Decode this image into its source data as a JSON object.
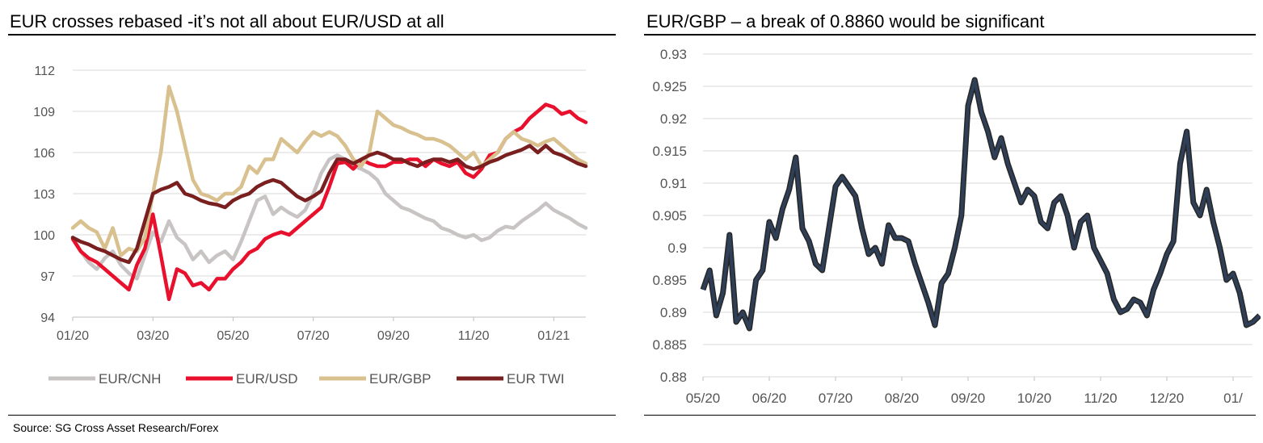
{
  "source": "Source: SG Cross Asset Research/Forex",
  "chart_data": [
    {
      "type": "line",
      "title": "EUR crosses rebased  -it’s not all about EUR/USD at all",
      "x_ticks": [
        "01/20",
        "03/20",
        "05/20",
        "07/20",
        "09/20",
        "11/20",
        "01/21"
      ],
      "y_ticks": [
        "112",
        "109",
        "106",
        "103",
        "100",
        "97",
        "94"
      ],
      "ylim": [
        94,
        112
      ],
      "grid": true,
      "legend_position": "bottom",
      "legend": [
        "EUR/CNH",
        "EUR/USD",
        "EUR/GBP",
        "EUR TWI"
      ],
      "series": [
        {
          "name": "EUR/CNH",
          "color": "#c8c4c4",
          "x": [
            0,
            0.2,
            0.4,
            0.6,
            0.8,
            1.0,
            1.2,
            1.4,
            1.6,
            1.8,
            2.0,
            2.2,
            2.4,
            2.6,
            2.8,
            3.0,
            3.2,
            3.4,
            3.6,
            3.8,
            4.0,
            4.2,
            4.4,
            4.6,
            4.8,
            5.0,
            5.2,
            5.4,
            5.6,
            5.8,
            6.0,
            6.2,
            6.4,
            6.6,
            6.8,
            7.0,
            7.2,
            7.4,
            7.6,
            7.8,
            8.0,
            8.2,
            8.4,
            8.6,
            8.8,
            9.0,
            9.2,
            9.4,
            9.6,
            9.8,
            10.0,
            10.2,
            10.4,
            10.6,
            10.8,
            11.0,
            11.2,
            11.4,
            11.6,
            11.8,
            12.0,
            12.2,
            12.4,
            12.6,
            12.8
          ],
          "y": [
            99.8,
            98.8,
            98.0,
            97.5,
            98.3,
            98.8,
            97.8,
            97.2,
            96.8,
            98.5,
            100.2,
            99.5,
            101.0,
            99.8,
            99.3,
            98.2,
            98.8,
            98.0,
            98.5,
            98.8,
            98.2,
            99.5,
            101.0,
            102.5,
            102.8,
            101.5,
            102.0,
            101.6,
            101.3,
            101.8,
            103.0,
            104.5,
            105.5,
            105.8,
            105.5,
            105.0,
            104.8,
            104.5,
            104.0,
            103.0,
            102.5,
            102.0,
            101.8,
            101.5,
            101.2,
            101.0,
            100.5,
            100.3,
            100.0,
            99.8,
            100.0,
            99.6,
            99.8,
            100.3,
            100.6,
            100.5,
            101.0,
            101.4,
            101.8,
            102.3,
            101.8,
            101.5,
            101.2,
            100.8,
            100.5
          ]
        },
        {
          "name": "EUR/USD",
          "color": "#e8102c",
          "x": [
            0,
            0.2,
            0.4,
            0.6,
            0.8,
            1.0,
            1.2,
            1.4,
            1.6,
            1.8,
            2.0,
            2.2,
            2.4,
            2.6,
            2.8,
            3.0,
            3.2,
            3.4,
            3.6,
            3.8,
            4.0,
            4.2,
            4.4,
            4.6,
            4.8,
            5.0,
            5.2,
            5.4,
            5.6,
            5.8,
            6.0,
            6.2,
            6.4,
            6.6,
            6.8,
            7.0,
            7.2,
            7.4,
            7.6,
            7.8,
            8.0,
            8.2,
            8.4,
            8.6,
            8.8,
            9.0,
            9.2,
            9.4,
            9.6,
            9.8,
            10.0,
            10.2,
            10.4,
            10.6,
            10.8,
            11.0,
            11.2,
            11.4,
            11.6,
            11.8,
            12.0,
            12.2,
            12.4,
            12.6,
            12.8
          ],
          "y": [
            99.7,
            98.8,
            98.3,
            98.0,
            97.5,
            97.0,
            96.5,
            96.0,
            97.8,
            99.0,
            101.5,
            98.5,
            95.3,
            97.5,
            97.2,
            96.3,
            96.5,
            96.0,
            96.8,
            96.8,
            97.5,
            98.0,
            98.7,
            99.0,
            99.7,
            100.0,
            100.2,
            100.0,
            100.5,
            101.0,
            101.5,
            102.0,
            103.5,
            105.2,
            105.3,
            104.8,
            105.5,
            105.2,
            105.0,
            105.0,
            105.3,
            105.3,
            105.5,
            105.5,
            105.0,
            105.5,
            105.2,
            105.0,
            105.3,
            104.5,
            104.2,
            104.8,
            105.8,
            106.0,
            107.0,
            107.5,
            107.8,
            108.5,
            109.0,
            109.5,
            109.3,
            108.8,
            109.0,
            108.5,
            108.2
          ]
        },
        {
          "name": "EUR/GBP",
          "color": "#d8c08f",
          "x": [
            0,
            0.2,
            0.4,
            0.6,
            0.8,
            1.0,
            1.2,
            1.4,
            1.6,
            1.8,
            2.0,
            2.2,
            2.4,
            2.6,
            2.8,
            3.0,
            3.2,
            3.4,
            3.6,
            3.8,
            4.0,
            4.2,
            4.4,
            4.6,
            4.8,
            5.0,
            5.2,
            5.4,
            5.6,
            5.8,
            6.0,
            6.2,
            6.4,
            6.6,
            6.8,
            7.0,
            7.2,
            7.4,
            7.6,
            7.8,
            8.0,
            8.2,
            8.4,
            8.6,
            8.8,
            9.0,
            9.2,
            9.4,
            9.6,
            9.8,
            10.0,
            10.2,
            10.4,
            10.6,
            10.8,
            11.0,
            11.2,
            11.4,
            11.6,
            11.8,
            12.0,
            12.2,
            12.4,
            12.6,
            12.8
          ],
          "y": [
            100.5,
            101.0,
            100.5,
            100.2,
            99.0,
            100.5,
            98.5,
            99.0,
            98.8,
            99.8,
            103.0,
            106.0,
            110.8,
            109.0,
            106.5,
            104.0,
            103.0,
            102.8,
            102.5,
            103.0,
            103.0,
            103.5,
            105.0,
            104.5,
            105.5,
            105.5,
            107.0,
            106.5,
            106.0,
            106.8,
            107.5,
            107.2,
            107.5,
            107.2,
            106.5,
            105.5,
            105.0,
            106.0,
            109.0,
            108.5,
            108.0,
            107.8,
            107.5,
            107.3,
            107.0,
            107.0,
            106.8,
            106.5,
            106.0,
            105.5,
            106.0,
            105.0,
            105.5,
            106.0,
            107.0,
            107.5,
            107.0,
            106.8,
            106.5,
            106.8,
            107.0,
            106.5,
            106.0,
            105.5,
            105.2
          ]
        },
        {
          "name": "EUR TWI",
          "color": "#7a1f1f",
          "x": [
            0,
            0.2,
            0.4,
            0.6,
            0.8,
            1.0,
            1.2,
            1.4,
            1.6,
            1.8,
            2.0,
            2.2,
            2.4,
            2.6,
            2.8,
            3.0,
            3.2,
            3.4,
            3.6,
            3.8,
            4.0,
            4.2,
            4.4,
            4.6,
            4.8,
            5.0,
            5.2,
            5.4,
            5.6,
            5.8,
            6.0,
            6.2,
            6.4,
            6.6,
            6.8,
            7.0,
            7.2,
            7.4,
            7.6,
            7.8,
            8.0,
            8.2,
            8.4,
            8.6,
            8.8,
            9.0,
            9.2,
            9.4,
            9.6,
            9.8,
            10.0,
            10.2,
            10.4,
            10.6,
            10.8,
            11.0,
            11.2,
            11.4,
            11.6,
            11.8,
            12.0,
            12.2,
            12.4,
            12.6,
            12.8
          ],
          "y": [
            99.8,
            99.5,
            99.3,
            99.0,
            98.8,
            98.5,
            98.2,
            98.0,
            99.0,
            101.0,
            103.0,
            103.3,
            103.5,
            103.8,
            103.0,
            102.8,
            102.5,
            102.3,
            102.2,
            102.0,
            102.5,
            102.8,
            103.0,
            103.5,
            103.8,
            104.0,
            103.8,
            103.3,
            102.8,
            102.5,
            102.8,
            103.2,
            104.5,
            105.5,
            105.5,
            105.2,
            105.5,
            105.8,
            106.0,
            105.8,
            105.5,
            105.5,
            105.2,
            105.0,
            105.3,
            105.5,
            105.5,
            105.3,
            105.5,
            105.0,
            104.8,
            105.0,
            105.3,
            105.5,
            105.8,
            106.0,
            106.2,
            106.5,
            106.0,
            106.5,
            106.0,
            105.8,
            105.5,
            105.2,
            105.0
          ]
        }
      ]
    },
    {
      "type": "line",
      "title": "EUR/GBP – a break of 0.8860 would be significant",
      "x_ticks": [
        "05/20",
        "06/20",
        "07/20",
        "08/20",
        "09/20",
        "10/20",
        "11/20",
        "12/20",
        "01/"
      ],
      "y_ticks": [
        "0.93",
        "0.925",
        "0.92",
        "0.915",
        "0.91",
        "0.905",
        "0.9",
        "0.895",
        "0.89",
        "0.885",
        "0.88"
      ],
      "ylim": [
        0.88,
        0.93
      ],
      "grid": true,
      "series": [
        {
          "color": "#2f3f57",
          "x": [
            0,
            0.1,
            0.2,
            0.3,
            0.4,
            0.5,
            0.6,
            0.7,
            0.8,
            0.9,
            1.0,
            1.1,
            1.2,
            1.3,
            1.4,
            1.5,
            1.6,
            1.7,
            1.8,
            1.9,
            2.0,
            2.1,
            2.2,
            2.3,
            2.4,
            2.5,
            2.6,
            2.7,
            2.8,
            2.9,
            3.0,
            3.1,
            3.2,
            3.3,
            3.4,
            3.5,
            3.6,
            3.7,
            3.8,
            3.9,
            4.0,
            4.1,
            4.2,
            4.3,
            4.4,
            4.5,
            4.6,
            4.7,
            4.8,
            4.9,
            5.0,
            5.1,
            5.2,
            5.3,
            5.4,
            5.5,
            5.6,
            5.7,
            5.8,
            5.9,
            6.0,
            6.1,
            6.2,
            6.3,
            6.4,
            6.5,
            6.6,
            6.7,
            6.8,
            6.9,
            7.0,
            7.1,
            7.2,
            7.3,
            7.4,
            7.5,
            7.6,
            7.7,
            7.8,
            7.9,
            8.0,
            8.1,
            8.2,
            8.3,
            8.4
          ],
          "y": [
            0.8935,
            0.8965,
            0.8895,
            0.893,
            0.902,
            0.8885,
            0.89,
            0.8875,
            0.895,
            0.8965,
            0.904,
            0.9015,
            0.906,
            0.909,
            0.914,
            0.903,
            0.901,
            0.8975,
            0.8965,
            0.903,
            0.9095,
            0.911,
            0.9095,
            0.908,
            0.903,
            0.899,
            0.9,
            0.8975,
            0.9035,
            0.9015,
            0.9015,
            0.901,
            0.8975,
            0.8945,
            0.8915,
            0.888,
            0.8945,
            0.896,
            0.9,
            0.905,
            0.922,
            0.926,
            0.921,
            0.918,
            0.914,
            0.917,
            0.913,
            0.91,
            0.907,
            0.909,
            0.908,
            0.904,
            0.903,
            0.907,
            0.908,
            0.905,
            0.9,
            0.904,
            0.905,
            0.9,
            0.898,
            0.896,
            0.892,
            0.89,
            0.8905,
            0.892,
            0.8915,
            0.8895,
            0.8935,
            0.896,
            0.899,
            0.901,
            0.913,
            0.918,
            0.907,
            0.905,
            0.909,
            0.904,
            0.9,
            0.895,
            0.896,
            0.893,
            0.888,
            0.8885,
            0.8895
          ]
        }
      ]
    }
  ]
}
